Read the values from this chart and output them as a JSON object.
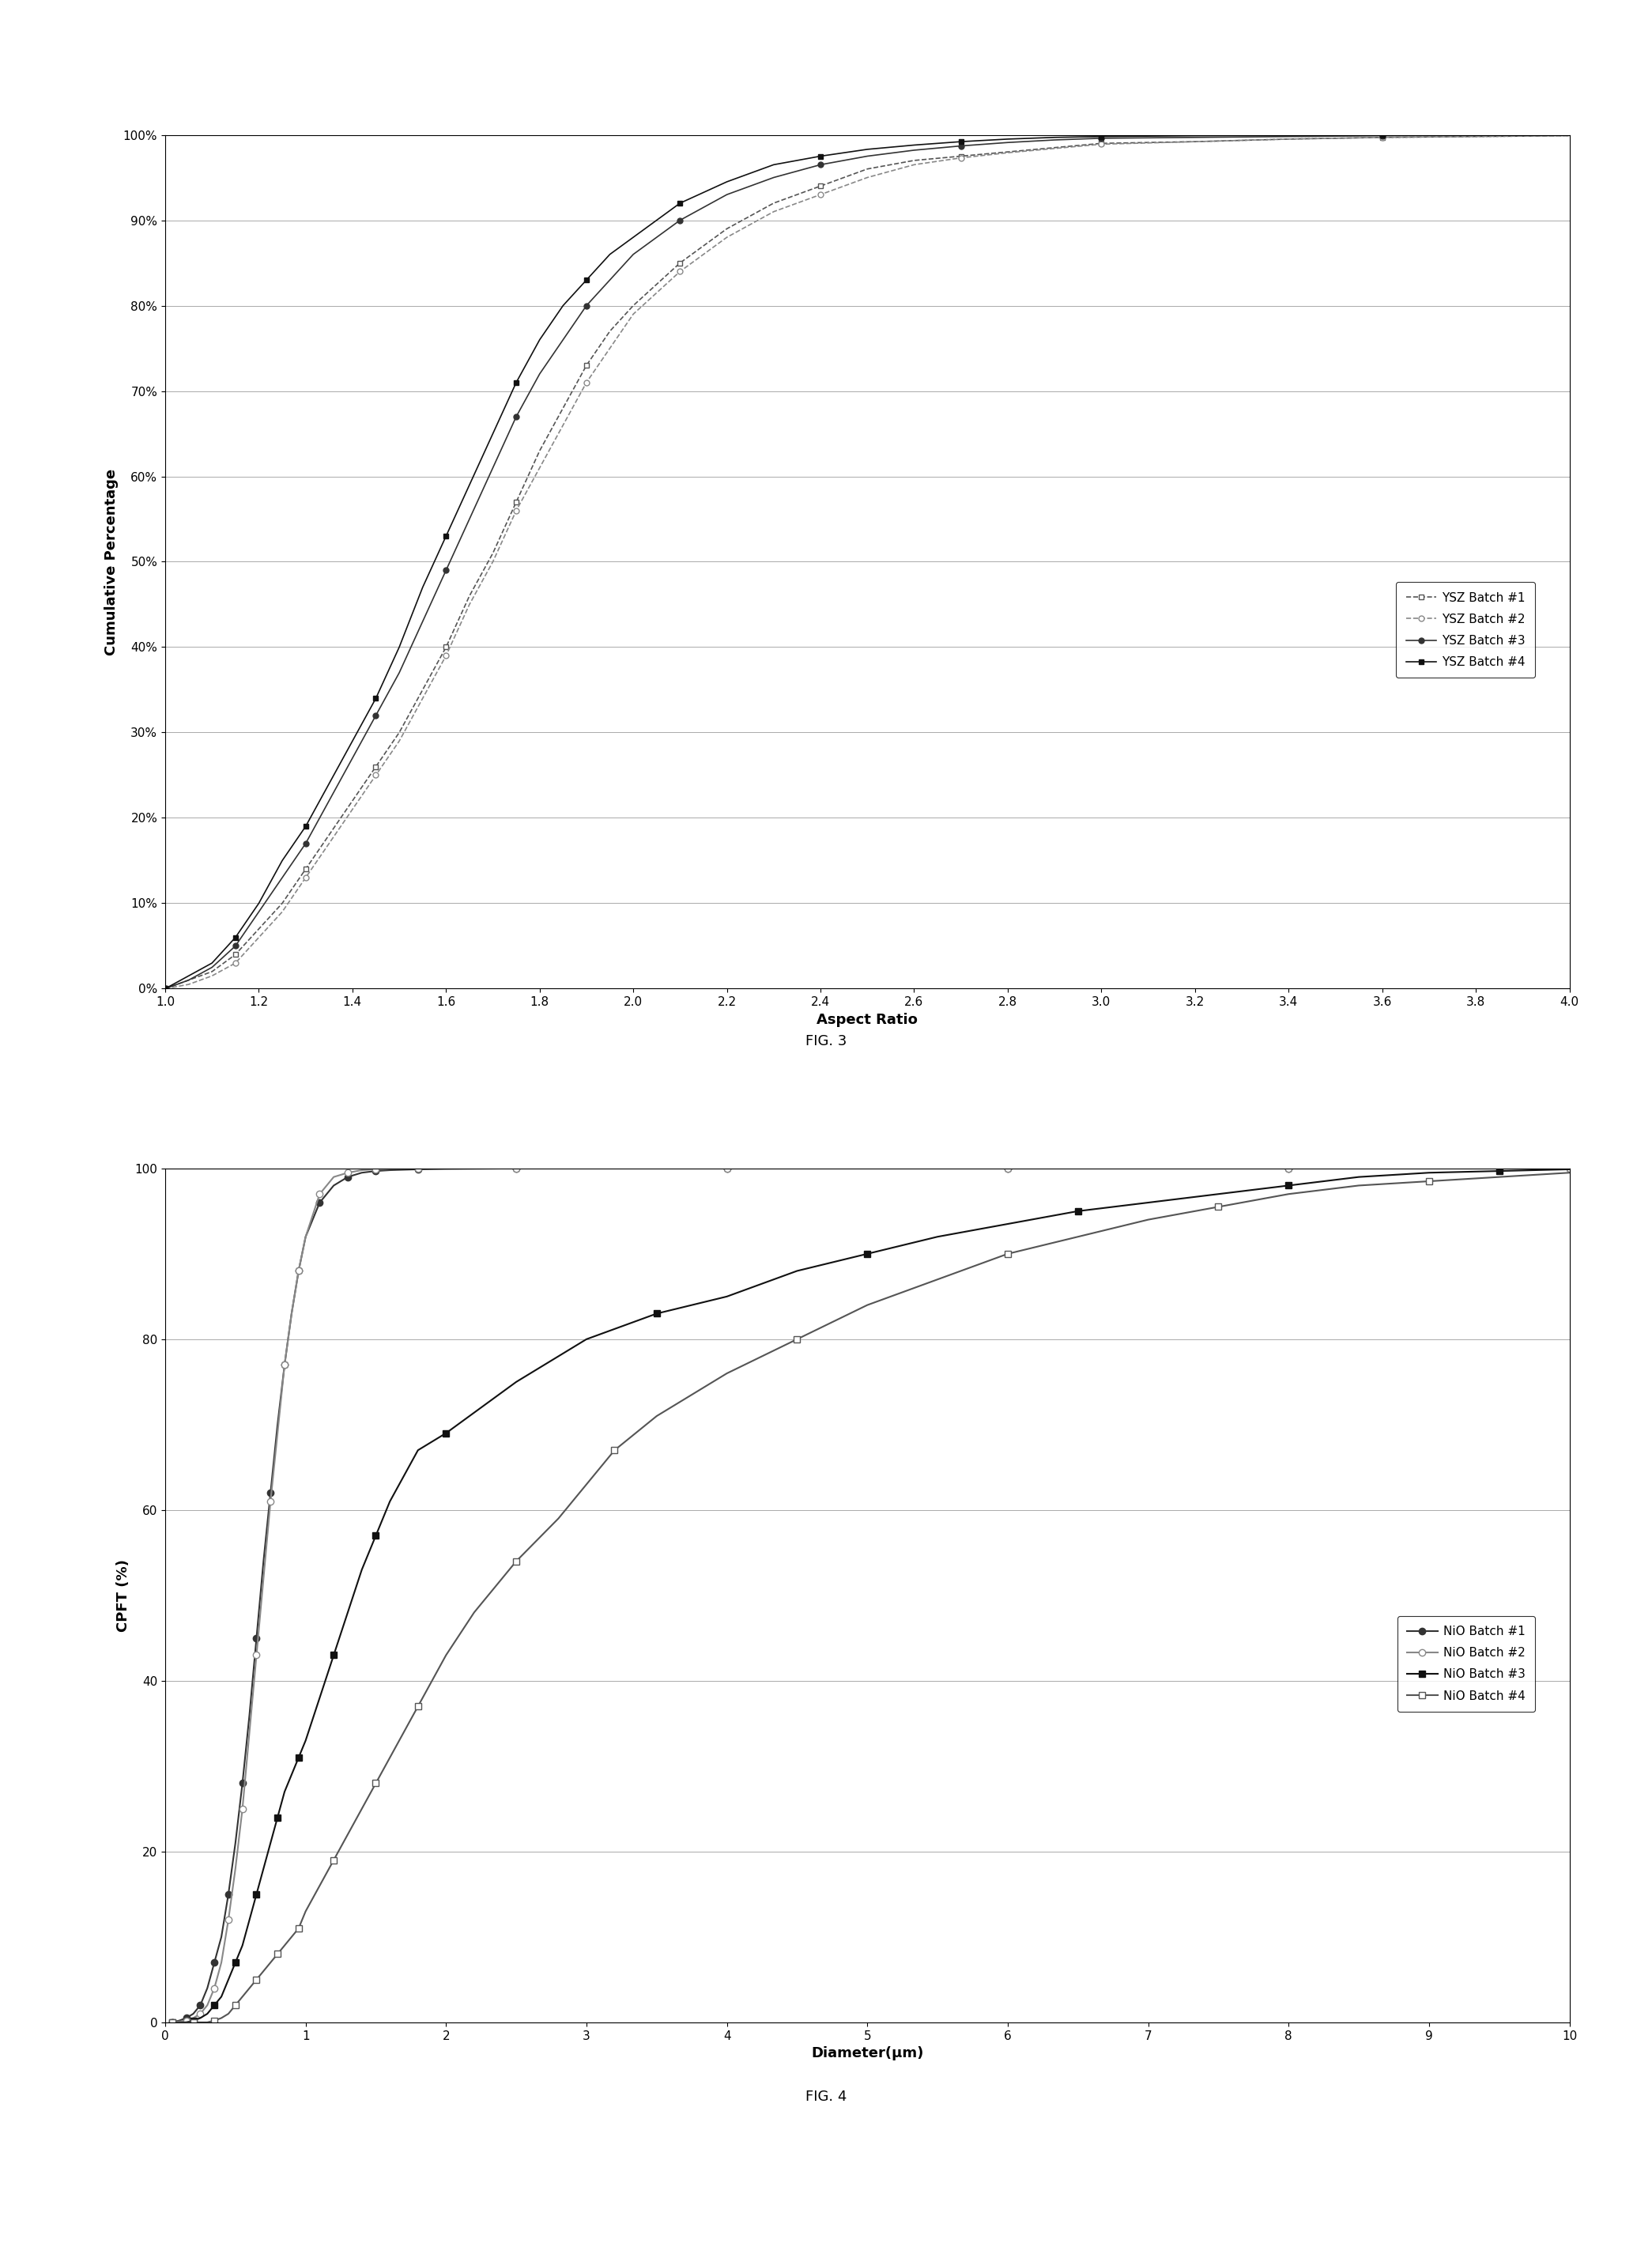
{
  "fig3": {
    "title": "",
    "xlabel": "Aspect Ratio",
    "ylabel": "Cumulative Percentage",
    "xlim": [
      1.0,
      4.0
    ],
    "ylim": [
      0,
      100
    ],
    "xticks": [
      1.0,
      1.2,
      1.4,
      1.6,
      1.8,
      2.0,
      2.2,
      2.4,
      2.6,
      2.8,
      3.0,
      3.2,
      3.4,
      3.6,
      3.8,
      4.0
    ],
    "yticks": [
      0,
      10,
      20,
      30,
      40,
      50,
      60,
      70,
      80,
      90,
      100
    ],
    "ytick_labels": [
      "0%",
      "10%",
      "20%",
      "30%",
      "40%",
      "50%",
      "60%",
      "70%",
      "80%",
      "90%",
      "100%"
    ],
    "caption": "FIG. 3",
    "series": [
      {
        "label": "YSZ Batch #1",
        "marker": "s",
        "fillstyle": "none",
        "color": "#555555",
        "linestyle": "--",
        "x": [
          1.0,
          1.05,
          1.1,
          1.15,
          1.2,
          1.25,
          1.3,
          1.35,
          1.4,
          1.45,
          1.5,
          1.55,
          1.6,
          1.65,
          1.7,
          1.75,
          1.8,
          1.85,
          1.9,
          1.95,
          2.0,
          2.1,
          2.2,
          2.3,
          2.4,
          2.5,
          2.6,
          2.7,
          2.8,
          2.9,
          3.0,
          3.2,
          3.4,
          3.6,
          3.8,
          4.0
        ],
        "y": [
          0,
          1,
          2,
          4,
          7,
          10,
          14,
          18,
          22,
          26,
          30,
          35,
          40,
          46,
          51,
          57,
          63,
          68,
          73,
          77,
          80,
          85,
          89,
          92,
          94,
          96,
          97,
          97.5,
          98,
          98.5,
          99,
          99.2,
          99.5,
          99.7,
          99.8,
          99.9
        ]
      },
      {
        "label": "YSZ Batch #2",
        "marker": "o",
        "fillstyle": "none",
        "color": "#888888",
        "linestyle": "--",
        "x": [
          1.0,
          1.05,
          1.1,
          1.15,
          1.2,
          1.25,
          1.3,
          1.35,
          1.4,
          1.45,
          1.5,
          1.55,
          1.6,
          1.65,
          1.7,
          1.75,
          1.8,
          1.85,
          1.9,
          1.95,
          2.0,
          2.1,
          2.2,
          2.3,
          2.4,
          2.5,
          2.6,
          2.7,
          2.8,
          2.9,
          3.0,
          3.2,
          3.4,
          3.6,
          3.8,
          4.0
        ],
        "y": [
          0,
          0.5,
          1.5,
          3,
          6,
          9,
          13,
          17,
          21,
          25,
          29,
          34,
          39,
          45,
          50,
          56,
          61,
          66,
          71,
          75,
          79,
          84,
          88,
          91,
          93,
          95,
          96.5,
          97.3,
          97.9,
          98.4,
          98.9,
          99.2,
          99.5,
          99.7,
          99.8,
          99.9
        ]
      },
      {
        "label": "YSZ Batch #3",
        "marker": "o",
        "fillstyle": "full",
        "color": "#333333",
        "linestyle": "-",
        "x": [
          1.0,
          1.05,
          1.1,
          1.15,
          1.2,
          1.25,
          1.3,
          1.35,
          1.4,
          1.45,
          1.5,
          1.55,
          1.6,
          1.65,
          1.7,
          1.75,
          1.8,
          1.85,
          1.9,
          1.95,
          2.0,
          2.1,
          2.2,
          2.3,
          2.4,
          2.5,
          2.6,
          2.7,
          2.8,
          2.9,
          3.0,
          3.2,
          3.4,
          3.6,
          3.8,
          4.0
        ],
        "y": [
          0,
          1,
          2.5,
          5,
          9,
          13,
          17,
          22,
          27,
          32,
          37,
          43,
          49,
          55,
          61,
          67,
          72,
          76,
          80,
          83,
          86,
          90,
          93,
          95,
          96.5,
          97.5,
          98.2,
          98.7,
          99.1,
          99.4,
          99.6,
          99.7,
          99.8,
          99.9,
          99.95,
          100
        ]
      },
      {
        "label": "YSZ Batch #4",
        "marker": "s",
        "fillstyle": "full",
        "color": "#111111",
        "linestyle": "-",
        "x": [
          1.0,
          1.05,
          1.1,
          1.15,
          1.2,
          1.25,
          1.3,
          1.35,
          1.4,
          1.45,
          1.5,
          1.55,
          1.6,
          1.65,
          1.7,
          1.75,
          1.8,
          1.85,
          1.9,
          1.95,
          2.0,
          2.1,
          2.2,
          2.3,
          2.4,
          2.5,
          2.6,
          2.7,
          2.8,
          2.9,
          3.0,
          3.2,
          3.4,
          3.6,
          3.8,
          4.0
        ],
        "y": [
          0,
          1.5,
          3,
          6,
          10,
          15,
          19,
          24,
          29,
          34,
          40,
          47,
          53,
          59,
          65,
          71,
          76,
          80,
          83,
          86,
          88,
          92,
          94.5,
          96.5,
          97.5,
          98.3,
          98.8,
          99.2,
          99.5,
          99.7,
          99.8,
          99.9,
          99.95,
          99.97,
          99.98,
          100
        ]
      }
    ]
  },
  "fig4": {
    "title": "",
    "xlabel": "Diameter(μm)",
    "ylabel": "CPFT (%)",
    "xlim": [
      0,
      10
    ],
    "ylim": [
      0,
      100
    ],
    "xticks": [
      0,
      1,
      2,
      3,
      4,
      5,
      6,
      7,
      8,
      9,
      10
    ],
    "yticks": [
      0,
      20,
      40,
      60,
      80,
      100
    ],
    "caption": "FIG. 4",
    "series": [
      {
        "label": "NiO Batch #1",
        "marker": "o",
        "fillstyle": "full",
        "color": "#333333",
        "linestyle": "-",
        "x": [
          0.05,
          0.1,
          0.15,
          0.2,
          0.25,
          0.3,
          0.35,
          0.4,
          0.45,
          0.5,
          0.55,
          0.6,
          0.65,
          0.7,
          0.75,
          0.8,
          0.85,
          0.9,
          0.95,
          1.0,
          1.1,
          1.2,
          1.3,
          1.4,
          1.5,
          1.6,
          1.8,
          2.0,
          2.5,
          3.0,
          4.0,
          5.0,
          6.0,
          7.0,
          8.0,
          9.0,
          10.0
        ],
        "y": [
          0,
          0.2,
          0.5,
          1,
          2,
          4,
          7,
          10,
          15,
          21,
          28,
          36,
          45,
          54,
          62,
          70,
          77,
          83,
          88,
          92,
          96,
          98,
          99,
          99.5,
          99.7,
          99.8,
          99.9,
          99.95,
          100,
          100,
          100,
          100,
          100,
          100,
          100,
          100,
          100
        ]
      },
      {
        "label": "NiO Batch #2",
        "marker": "o",
        "fillstyle": "none",
        "color": "#888888",
        "linestyle": "-",
        "x": [
          0.05,
          0.1,
          0.15,
          0.2,
          0.25,
          0.3,
          0.35,
          0.4,
          0.45,
          0.5,
          0.55,
          0.6,
          0.65,
          0.7,
          0.75,
          0.8,
          0.85,
          0.9,
          0.95,
          1.0,
          1.1,
          1.2,
          1.3,
          1.4,
          1.5,
          1.6,
          1.8,
          2.0,
          2.5,
          3.0,
          4.0,
          5.0,
          6.0,
          7.0,
          8.0,
          9.0,
          10.0
        ],
        "y": [
          0,
          0.1,
          0.2,
          0.5,
          1,
          2,
          4,
          7,
          12,
          18,
          25,
          34,
          43,
          52,
          61,
          69,
          77,
          83,
          88,
          92,
          97,
          99,
          99.5,
          99.8,
          99.9,
          99.95,
          100,
          100,
          100,
          100,
          100,
          100,
          100,
          100,
          100,
          100,
          100
        ]
      },
      {
        "label": "NiO Batch #3",
        "marker": "s",
        "fillstyle": "full",
        "color": "#111111",
        "linestyle": "-",
        "x": [
          0.05,
          0.1,
          0.15,
          0.2,
          0.25,
          0.3,
          0.35,
          0.4,
          0.45,
          0.5,
          0.55,
          0.6,
          0.65,
          0.7,
          0.75,
          0.8,
          0.85,
          0.9,
          0.95,
          1.0,
          1.1,
          1.2,
          1.3,
          1.4,
          1.5,
          1.6,
          1.8,
          2.0,
          2.5,
          3.0,
          3.5,
          4.0,
          4.5,
          5.0,
          5.5,
          6.0,
          6.5,
          7.0,
          7.5,
          8.0,
          8.5,
          9.0,
          9.5,
          10.0
        ],
        "y": [
          0,
          0,
          0,
          0.2,
          0.5,
          1,
          2,
          3,
          5,
          7,
          9,
          12,
          15,
          18,
          21,
          24,
          27,
          29,
          31,
          33,
          38,
          43,
          48,
          53,
          57,
          61,
          67,
          69,
          75,
          80,
          83,
          85,
          88,
          90,
          92,
          93.5,
          95,
          96,
          97,
          98,
          99,
          99.5,
          99.7,
          99.9
        ]
      },
      {
        "label": "NiO Batch #4",
        "marker": "s",
        "fillstyle": "none",
        "color": "#555555",
        "linestyle": "-",
        "x": [
          0.05,
          0.1,
          0.15,
          0.2,
          0.25,
          0.3,
          0.35,
          0.4,
          0.45,
          0.5,
          0.55,
          0.6,
          0.65,
          0.7,
          0.75,
          0.8,
          0.85,
          0.9,
          0.95,
          1.0,
          1.1,
          1.2,
          1.3,
          1.4,
          1.5,
          1.6,
          1.7,
          1.8,
          2.0,
          2.2,
          2.5,
          2.8,
          3.0,
          3.2,
          3.5,
          4.0,
          4.5,
          5.0,
          5.5,
          6.0,
          6.5,
          7.0,
          7.5,
          8.0,
          8.5,
          9.0,
          9.5,
          10.0
        ],
        "y": [
          0,
          0,
          0,
          0,
          0,
          0,
          0.2,
          0.5,
          1,
          2,
          3,
          4,
          5,
          6,
          7,
          8,
          9,
          10,
          11,
          13,
          16,
          19,
          22,
          25,
          28,
          31,
          34,
          37,
          43,
          48,
          54,
          59,
          63,
          67,
          71,
          76,
          80,
          84,
          87,
          90,
          92,
          94,
          95.5,
          97,
          98,
          98.5,
          99,
          99.5
        ]
      }
    ]
  }
}
